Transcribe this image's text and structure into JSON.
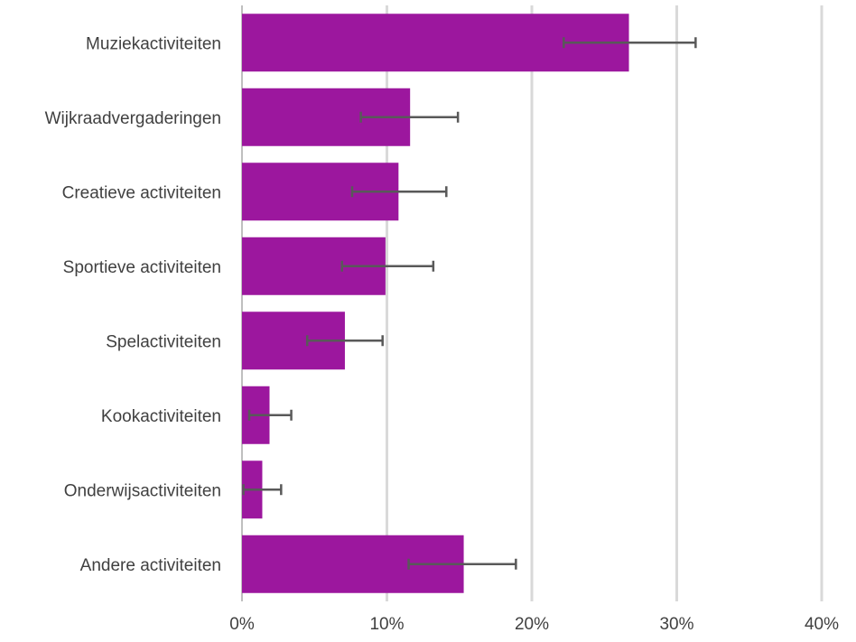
{
  "chart_data": {
    "type": "bar",
    "orientation": "horizontal",
    "title": "",
    "xlabel": "",
    "ylabel": "",
    "categories": [
      "Muziekactiviteiten",
      "Wijkraadvergaderingen",
      "Creatieve activiteiten",
      "Sportieve activiteiten",
      "Spelactiviteiten",
      "Kookactiviteiten",
      "Onderwijsactiviteiten",
      "Andere activiteiten"
    ],
    "series": [
      {
        "values": [
          26.7,
          11.6,
          10.8,
          9.9,
          7.1,
          1.9,
          1.4,
          15.3
        ],
        "error_low": [
          22.2,
          8.2,
          7.6,
          6.9,
          4.5,
          0.5,
          0.1,
          11.5
        ],
        "error_high": [
          31.3,
          14.9,
          14.1,
          13.2,
          9.7,
          3.4,
          2.7,
          18.9
        ]
      }
    ],
    "xlim": [
      0,
      40
    ],
    "xticks": [
      0,
      10,
      20,
      30,
      40
    ],
    "xtick_labels": [
      "0%",
      "10%",
      "20%",
      "30%",
      "40%"
    ],
    "grid": "vertical",
    "legend": "none",
    "colors": {
      "bar": "#9c179e",
      "error_bar": "#595959",
      "grid": "#d9d9d9",
      "axis": "#bfbfbf",
      "text": "#404040"
    }
  }
}
